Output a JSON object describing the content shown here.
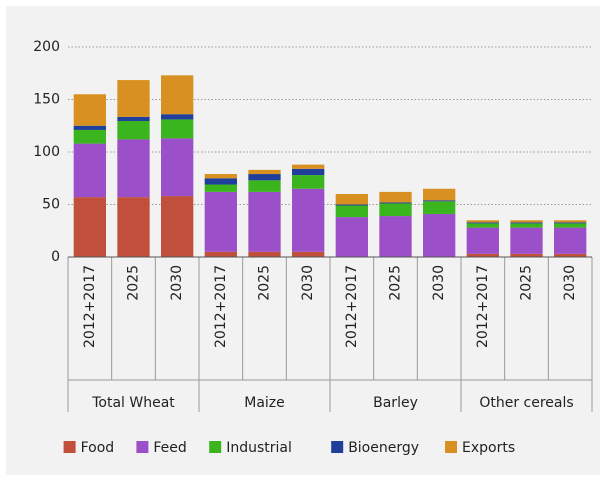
{
  "chart_data": {
    "type": "stacked_bar",
    "groups": [
      {
        "name": "Total Wheat",
        "categories": [
          "2012+2017",
          "2025",
          "2030"
        ]
      },
      {
        "name": "Maize",
        "categories": [
          "2012+2017",
          "2025",
          "2030"
        ]
      },
      {
        "name": "Barley",
        "categories": [
          "2012+2017",
          "2025",
          "2030"
        ]
      },
      {
        "name": "Other cereals",
        "categories": [
          "2012+2017",
          "2025",
          "2030"
        ]
      }
    ],
    "series": [
      {
        "name": "Food",
        "color": "#c0503b",
        "values": [
          57,
          57,
          58,
          5,
          5,
          5,
          0,
          0,
          0,
          3,
          3,
          3
        ]
      },
      {
        "name": "Feed",
        "color": "#9b4fc9",
        "values": [
          51,
          55,
          55,
          57,
          57,
          60,
          38,
          39,
          41,
          25,
          25,
          25
        ]
      },
      {
        "name": "Industrial",
        "color": "#3ab51e",
        "values": [
          13,
          17.5,
          18,
          7,
          11,
          13,
          11,
          12,
          12,
          4,
          4,
          4
        ]
      },
      {
        "name": "Bioenergy",
        "color": "#1f3f9b",
        "values": [
          4,
          4,
          5,
          6,
          6,
          6,
          1,
          1,
          1,
          1,
          1,
          1
        ]
      },
      {
        "name": "Exports",
        "color": "#d89120",
        "values": [
          30,
          35,
          37,
          4,
          4,
          4,
          10,
          10,
          11,
          2,
          2,
          2
        ]
      }
    ],
    "ylim": [
      0,
      200
    ],
    "yticks": [
      0,
      50,
      100,
      150,
      200
    ],
    "grid": true
  }
}
